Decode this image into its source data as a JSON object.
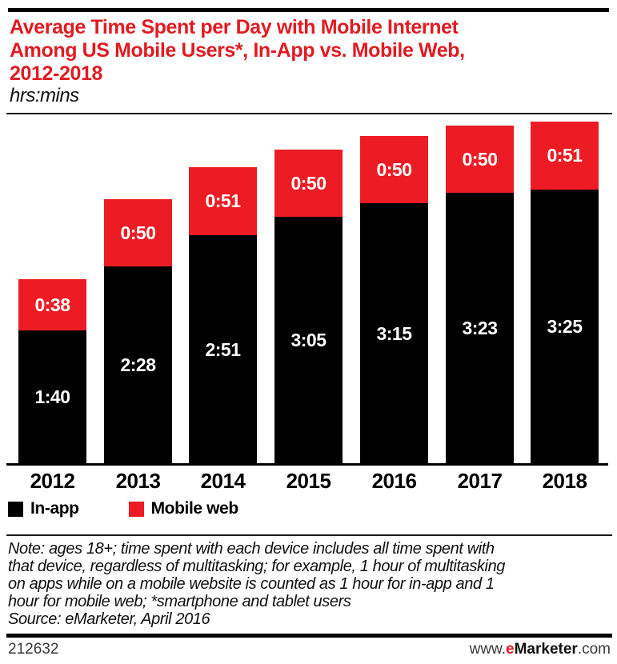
{
  "title": {
    "lines": [
      "Average Time Spent per Day with Mobile Internet",
      "Among US Mobile Users*, In-App vs. Mobile Web,",
      "2012-2018"
    ],
    "full": "Average Time Spent per Day with Mobile Internet Among US Mobile Users*, In-App vs. Mobile Web, 2012-2018"
  },
  "subtitle": "hrs:mins",
  "chart_data": {
    "type": "bar",
    "stacked": true,
    "title": "Average Time Spent per Day with Mobile Internet Among US Mobile Users*, In-App vs. Mobile Web, 2012-2018",
    "unit": "hrs:mins",
    "categories": [
      "2012",
      "2013",
      "2014",
      "2015",
      "2016",
      "2017",
      "2018"
    ],
    "series": [
      {
        "name": "In-app",
        "color": "#000000",
        "label_color": "#ffffff",
        "values_hrs_mins": [
          "1:40",
          "2:28",
          "2:51",
          "3:05",
          "3:15",
          "3:23",
          "3:25"
        ],
        "values_minutes": [
          100,
          148,
          171,
          185,
          195,
          203,
          205
        ]
      },
      {
        "name": "Mobile web",
        "color": "#ED1C24",
        "label_color": "#ffffff",
        "values_hrs_mins": [
          "0:38",
          "0:50",
          "0:51",
          "0:50",
          "0:50",
          "0:50",
          "0:51"
        ],
        "values_minutes": [
          38,
          50,
          51,
          50,
          50,
          50,
          51
        ]
      }
    ],
    "totals_hrs_mins": [
      "2:18",
      "3:18",
      "3:42",
      "3:55",
      "4:05",
      "4:13",
      "4:16"
    ],
    "legend_position": "bottom-left",
    "grid": false,
    "y_axis_visible": false
  },
  "note": {
    "lines": [
      "Note: ages 18+; time spent with each device includes all time spent with",
      "that device, regardless of multitasking; for example, 1 hour of multitasking",
      "on apps while on a mobile website is counted as 1 hour for in-app and 1",
      "hour for mobile web; *smartphone and tablet users"
    ]
  },
  "source": "Source: eMarketer, April 2016",
  "footer": {
    "id": "212632",
    "url_prefix": "www.",
    "brand_first_letter": "e",
    "brand_rest": "Marketer",
    "url_suffix": ".com"
  },
  "colors": {
    "accent_red": "#ED1C24",
    "title_red": "#E11B22",
    "bar_black": "#000000",
    "background": "#ffffff"
  }
}
